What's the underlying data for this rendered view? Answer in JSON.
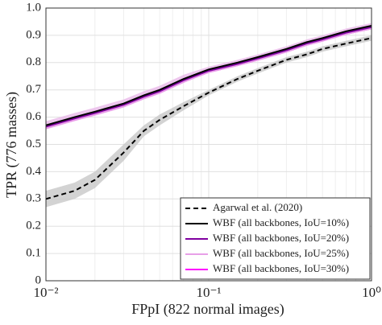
{
  "chart_data": {
    "type": "line",
    "xlabel": "FPpI (822 normal images)",
    "ylabel": "TPR (776 masses)",
    "log_x": true,
    "grid": true,
    "minor_grid": true,
    "legend": "lower right",
    "xlim": [
      0.01,
      1
    ],
    "ylim": [
      0,
      1
    ],
    "xticks": [
      {
        "value": 0.01,
        "label": "10⁻²"
      },
      {
        "value": 0.1,
        "label": "10⁻¹"
      },
      {
        "value": 1,
        "label": "10⁰"
      }
    ],
    "yticks": [
      0,
      0.1,
      0.2,
      0.3,
      0.4,
      0.5,
      0.6,
      0.7,
      0.8,
      0.9,
      {
        "value": 1,
        "label": "1.0"
      }
    ],
    "x": [
      0.01,
      0.015,
      0.02,
      0.03,
      0.04,
      0.05,
      0.07,
      0.1,
      0.15,
      0.2,
      0.3,
      0.4,
      0.5,
      0.7,
      1
    ],
    "series": [
      {
        "name": "Agarwal et al. (2020)",
        "color": "#000000",
        "dashed": true,
        "band_color": "#c8c8c8",
        "values": [
          0.3,
          0.33,
          0.37,
          0.47,
          0.55,
          0.59,
          0.64,
          0.69,
          0.74,
          0.77,
          0.81,
          0.83,
          0.85,
          0.87,
          0.89
        ],
        "lower": [
          0.27,
          0.3,
          0.34,
          0.44,
          0.53,
          0.57,
          0.625,
          0.68,
          0.73,
          0.76,
          0.8,
          0.82,
          0.84,
          0.86,
          0.88
        ],
        "upper": [
          0.33,
          0.36,
          0.4,
          0.5,
          0.57,
          0.61,
          0.655,
          0.7,
          0.75,
          0.78,
          0.82,
          0.84,
          0.86,
          0.88,
          0.9
        ]
      },
      {
        "name": "WBF (all backbones, IoU=10%)",
        "color": "#000000",
        "dashed": false,
        "band_color": "#e8b8e8",
        "values": [
          0.57,
          0.6,
          0.62,
          0.65,
          0.68,
          0.7,
          0.74,
          0.775,
          0.8,
          0.82,
          0.85,
          0.875,
          0.89,
          0.915,
          0.935
        ],
        "lower": [
          0.555,
          0.585,
          0.605,
          0.635,
          0.665,
          0.685,
          0.725,
          0.765,
          0.79,
          0.81,
          0.84,
          0.865,
          0.88,
          0.905,
          0.925
        ],
        "upper": [
          0.585,
          0.615,
          0.635,
          0.665,
          0.695,
          0.715,
          0.755,
          0.785,
          0.81,
          0.83,
          0.86,
          0.885,
          0.9,
          0.925,
          0.945
        ]
      },
      {
        "name": "WBF (all backbones, IoU=20%)",
        "color": "#8000a0",
        "dashed": false,
        "values": [
          0.565,
          0.595,
          0.615,
          0.645,
          0.675,
          0.695,
          0.735,
          0.77,
          0.795,
          0.815,
          0.845,
          0.87,
          0.885,
          0.91,
          0.93
        ]
      },
      {
        "name": "WBF (all backbones, IoU=25%)",
        "color": "#e8a0e8",
        "dashed": false,
        "values": [
          0.56,
          0.59,
          0.61,
          0.64,
          0.67,
          0.69,
          0.73,
          0.765,
          0.79,
          0.81,
          0.84,
          0.865,
          0.88,
          0.905,
          0.925
        ]
      },
      {
        "name": "WBF (all backbones, IoU=30%)",
        "color": "#ff00ff",
        "dashed": false,
        "values": [
          0.56,
          0.59,
          0.61,
          0.64,
          0.67,
          0.69,
          0.73,
          0.765,
          0.79,
          0.81,
          0.84,
          0.865,
          0.88,
          0.905,
          0.925
        ]
      }
    ]
  }
}
